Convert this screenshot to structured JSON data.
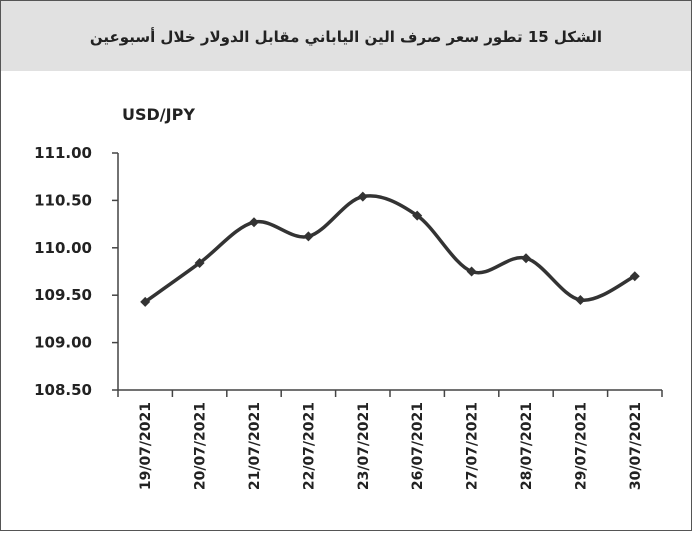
{
  "chart_data": {
    "type": "line",
    "title": "الشكل 15 تطور سعر صرف الين الياباني مقابل الدولار خلال أسبوعين",
    "ylabel": "USD/JPY",
    "categories": [
      "19/07/2021",
      "20/07/2021",
      "21/07/2021",
      "22/07/2021",
      "23/07/2021",
      "26/07/2021",
      "27/07/2021",
      "28/07/2021",
      "29/07/2021",
      "30/07/2021"
    ],
    "series": [
      {
        "name": "USD/JPY",
        "color": "#333333",
        "values": [
          109.43,
          109.84,
          110.27,
          110.12,
          110.54,
          110.34,
          109.75,
          109.89,
          109.45,
          109.7
        ]
      }
    ],
    "ylim": [
      108.5,
      111
    ],
    "yticks": [
      {
        "value": 108.5,
        "label": "108.50"
      },
      {
        "value": 109,
        "label": "109.00"
      },
      {
        "value": 109.5,
        "label": "109.50"
      },
      {
        "value": 110,
        "label": "110.00"
      },
      {
        "value": 110.5,
        "label": "110.50"
      },
      {
        "value": 111,
        "label": "111.00"
      }
    ],
    "grid": false
  }
}
